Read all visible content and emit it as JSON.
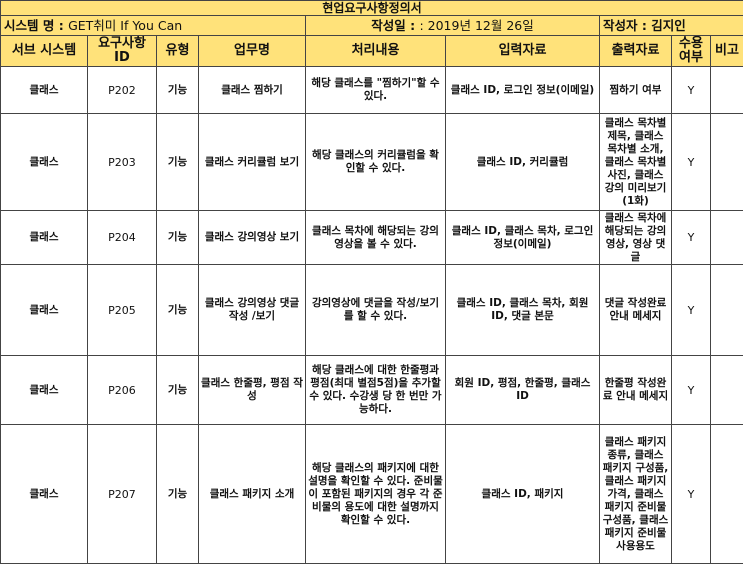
{
  "title": "현업요구사항정의서",
  "meta": {
    "system_label": "시스템 명 : ",
    "system_name": "GET취미 If You Can",
    "date_label": "작성일 : ",
    "date_value": ": 2019년 12월 26일",
    "author_label": "작성자 : ",
    "author_value": "김지인"
  },
  "headers": {
    "subsystem": "서브 시스템",
    "req_id": "요구사항 ID",
    "type": "유형",
    "task": "업무명",
    "processing": "처리내용",
    "input": "입력자료",
    "output": "출력자료",
    "accept": "수용 여부",
    "note": "비고"
  },
  "rows": [
    {
      "subsystem": "클래스",
      "id": "P202",
      "type": "기능",
      "task": "클래스 찜하기",
      "processing": "해당 클래스를 \"찜하기\"할 수 있다.",
      "input": "클래스 ID, 로그인 정보(이메일)",
      "output": "찜하기 여부",
      "accept": "Y",
      "note": ""
    },
    {
      "subsystem": "클래스",
      "id": "P203",
      "type": "기능",
      "task": "클래스 커리큘럼 보기",
      "processing": "해당 클래스의 커리큘럼을 확인할 수 있다.",
      "input": "클래스 ID, 커리큘럼",
      "output": "클래스 목차별 제목, 클래스 목차별 소개, 클래스 목차별 사진, 클래스 강의 미리보기(1화)",
      "accept": "Y",
      "note": ""
    },
    {
      "subsystem": "클래스",
      "id": "P204",
      "type": "기능",
      "task": "클래스 강의영상 보기",
      "processing": "클래스 목차에 해당되는 강의영상을 볼 수 있다.",
      "input": "클래스 ID, 클래스 목차, 로그인 정보(이메일)",
      "output": "클래스 목차에 해당되는 강의영상, 영상 댓글",
      "accept": "Y",
      "note": ""
    },
    {
      "subsystem": "클래스",
      "id": "P205",
      "type": "기능",
      "task": "클래스 강의영상 댓글작성 /보기",
      "processing": "강의영상에 댓글을 작성/보기를 할 수 있다.",
      "input": "클래스 ID, 클래스 목차, 회원 ID, 댓글 본문",
      "output": "댓글 작성완료 안내 메세지",
      "accept": "Y",
      "note": ""
    },
    {
      "subsystem": "클래스",
      "id": "P206",
      "type": "기능",
      "task": "클래스  한줄평, 평점 작성",
      "processing": "해당 클래스에 대한 한줄평과 평점(최대 별점5점)을 추가할 수 있다. 수강생 당 한 번만 가능하다.",
      "input": "회원 ID, 평점, 한줄평, 클래스 ID",
      "output": "한줄평 작성완료 안내 메세지",
      "accept": "Y",
      "note": ""
    },
    {
      "subsystem": "클래스",
      "id": "P207",
      "type": "기능",
      "task": "클래스 패키지 소개",
      "processing": "해당 클래스의 패키지에 대한 설명을 확인할 수 있다. 준비물이 포함된 패키지의 경우 각 준비물의 용도에 대한 설명까지 확인할 수 있다.",
      "input": "클래스 ID, 패키지",
      "output": "클래스 패키지 종류, 클래스 패키지 구성품, 클래스 패키지 가격, 클래스 패키지 준비물 구성품, 클래스 패키지 준비물 사용용도",
      "accept": "Y",
      "note": ""
    }
  ]
}
